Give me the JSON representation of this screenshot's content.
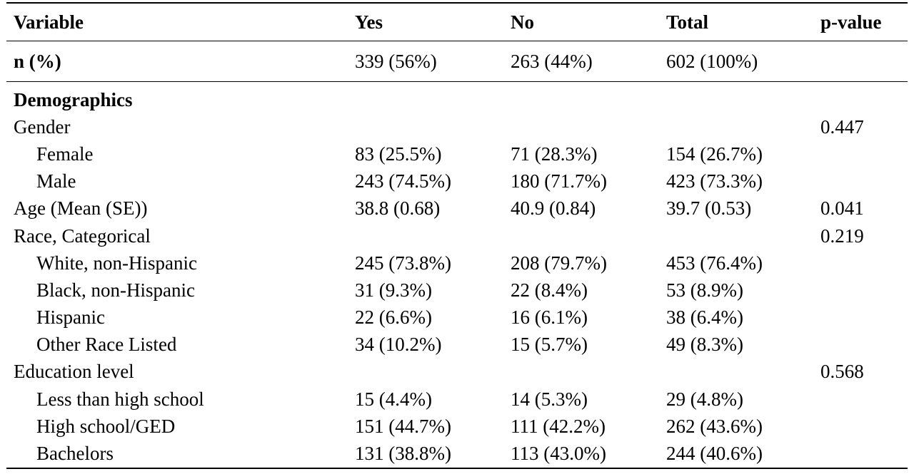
{
  "header": {
    "variable": "Variable",
    "yes": "Yes",
    "no": "No",
    "total": "Total",
    "pvalue": "p-value"
  },
  "n_row": {
    "label": "n (%)",
    "yes": "339 (56%)",
    "no": "263 (44%)",
    "total": "602 (100%)",
    "pvalue": ""
  },
  "rows": [
    {
      "kind": "section",
      "label": "Demographics",
      "yes": "",
      "no": "",
      "total": "",
      "pvalue": ""
    },
    {
      "kind": "group",
      "label": "Gender",
      "yes": "",
      "no": "",
      "total": "",
      "pvalue": "0.447"
    },
    {
      "kind": "sub",
      "label": "Female",
      "yes": "83 (25.5%)",
      "no": "71 (28.3%)",
      "total": "154 (26.7%)",
      "pvalue": ""
    },
    {
      "kind": "sub",
      "label": "Male",
      "yes": "243 (74.5%)",
      "no": "180 (71.7%)",
      "total": "423 (73.3%)",
      "pvalue": ""
    },
    {
      "kind": "group",
      "label": "Age (Mean (SE))",
      "yes": "38.8 (0.68)",
      "no": "40.9 (0.84)",
      "total": "39.7 (0.53)",
      "pvalue": "0.041"
    },
    {
      "kind": "group",
      "label": "Race, Categorical",
      "yes": "",
      "no": "",
      "total": "",
      "pvalue": "0.219"
    },
    {
      "kind": "sub",
      "label": "White, non-Hispanic",
      "yes": "245 (73.8%)",
      "no": "208 (79.7%)",
      "total": "453 (76.4%)",
      "pvalue": ""
    },
    {
      "kind": "sub",
      "label": "Black, non-Hispanic",
      "yes": "31 (9.3%)",
      "no": "22 (8.4%)",
      "total": "53 (8.9%)",
      "pvalue": ""
    },
    {
      "kind": "sub",
      "label": "Hispanic",
      "yes": "22 (6.6%)",
      "no": "16 (6.1%)",
      "total": "38 (6.4%)",
      "pvalue": ""
    },
    {
      "kind": "sub",
      "label": "Other Race Listed",
      "yes": "34 (10.2%)",
      "no": "15 (5.7%)",
      "total": "49 (8.3%)",
      "pvalue": ""
    },
    {
      "kind": "group",
      "label": "Education level",
      "yes": "",
      "no": "",
      "total": "",
      "pvalue": "0.568"
    },
    {
      "kind": "sub",
      "label": "Less than high school",
      "yes": "15 (4.4%)",
      "no": "14 (5.3%)",
      "total": "29 (4.8%)",
      "pvalue": ""
    },
    {
      "kind": "sub",
      "label": "High school/GED",
      "yes": "151 (44.7%)",
      "no": "111 (42.2%)",
      "total": "262 (43.6%)",
      "pvalue": ""
    },
    {
      "kind": "sub",
      "label": "Bachelors",
      "yes": "131 (38.8%)",
      "no": "113 (43.0%)",
      "total": "244 (40.6%)",
      "pvalue": ""
    }
  ]
}
